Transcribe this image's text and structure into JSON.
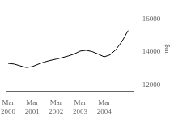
{
  "chart_data": {
    "type": "line",
    "x": [
      0,
      0.5,
      1,
      1.5,
      2,
      2.5,
      3,
      3.5,
      4,
      4.5,
      5,
      5.5,
      6,
      6.5,
      7,
      7.5,
      8,
      8.5,
      9,
      9.5,
      10
    ],
    "values": [
      13300,
      13260,
      13150,
      13050,
      13100,
      13250,
      13380,
      13480,
      13560,
      13650,
      13750,
      13870,
      14050,
      14100,
      14020,
      13870,
      13700,
      13820,
      14150,
      14650,
      15300
    ],
    "color": "#000000",
    "xlim": [
      -0.2,
      10.5
    ],
    "xticks": [
      {
        "value": 0,
        "label": "Mar\n2000"
      },
      {
        "value": 2,
        "label": "Mar\n2001"
      },
      {
        "value": 4,
        "label": "Mar\n2002"
      },
      {
        "value": 6,
        "label": "Mar\n2003"
      },
      {
        "value": 8,
        "label": "Mar\n2004"
      }
    ],
    "ylim": [
      11600,
      16800
    ],
    "yticks": [
      12000,
      14000,
      16000
    ],
    "ylabel": "$m",
    "grid": false
  }
}
